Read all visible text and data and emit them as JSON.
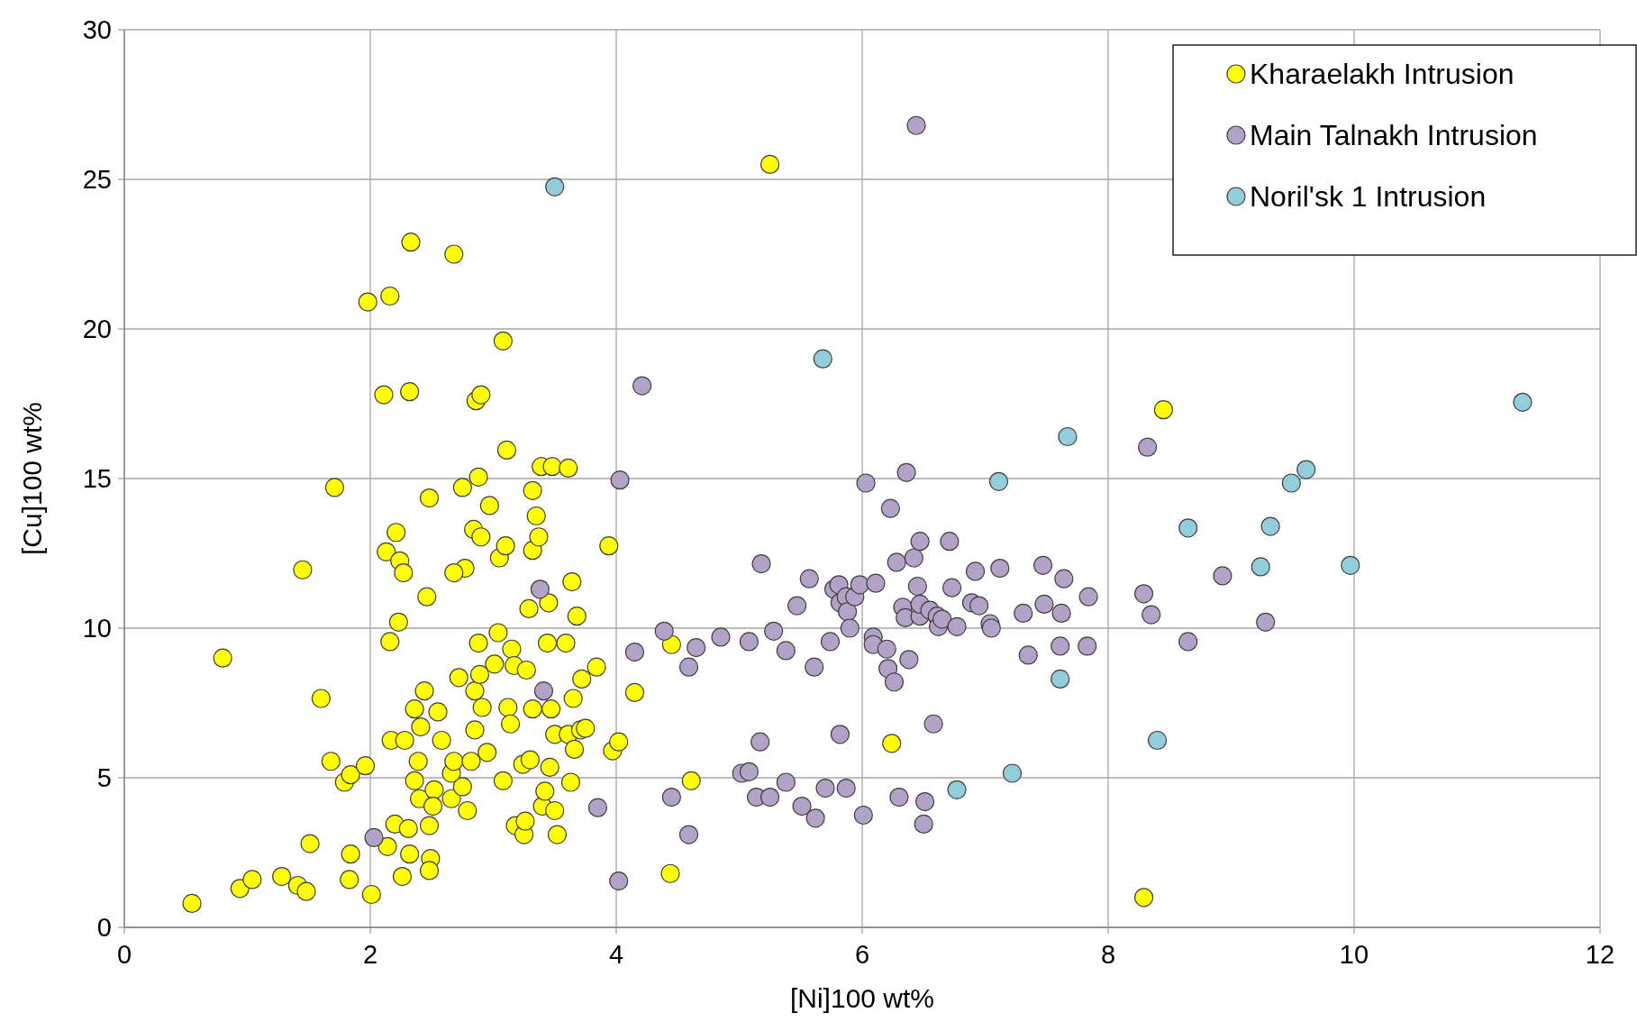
{
  "chart_data": {
    "type": "scatter",
    "xlabel": "[Ni]100 wt%",
    "ylabel": "[Cu]100 wt%",
    "xlim": [
      0,
      12
    ],
    "ylim": [
      0,
      30
    ],
    "xticks": [
      0,
      2,
      4,
      6,
      8,
      10,
      12
    ],
    "yticks": [
      0,
      5,
      10,
      15,
      20,
      25,
      30
    ],
    "grid": true,
    "legend": "top right",
    "marker": "circle",
    "series": [
      {
        "name": "Kharaelakh Intrusion",
        "color": "#ffff00",
        "x": [
          0.55,
          0.8,
          0.94,
          1.04,
          1.28,
          1.41,
          1.48,
          1.51,
          1.45,
          1.71,
          1.6,
          1.68,
          1.79,
          1.84,
          1.83,
          1.84,
          1.96,
          2.01,
          1.98,
          2.16,
          2.33,
          2.68,
          2.11,
          2.32,
          2.86,
          2.9,
          3.08,
          5.25,
          2.13,
          2.21,
          2.24,
          2.27,
          2.23,
          2.16,
          2.17,
          2.28,
          2.2,
          2.14,
          2.26,
          2.31,
          2.32,
          2.46,
          2.48,
          2.44,
          2.36,
          2.41,
          2.39,
          2.36,
          2.4,
          2.48,
          2.49,
          2.48,
          2.52,
          2.51,
          2.55,
          2.58,
          2.66,
          2.66,
          2.68,
          2.72,
          2.75,
          2.77,
          2.68,
          2.84,
          2.88,
          2.97,
          2.9,
          3.05,
          3.11,
          3.1,
          2.75,
          2.79,
          2.82,
          2.85,
          2.85,
          2.88,
          2.89,
          2.91,
          2.95,
          3.01,
          3.04,
          3.08,
          3.12,
          3.14,
          3.15,
          3.17,
          3.18,
          3.24,
          3.25,
          3.26,
          3.27,
          3.29,
          3.32,
          3.32,
          3.35,
          3.32,
          3.37,
          3.39,
          3.48,
          3.61,
          3.45,
          3.3,
          3.4,
          3.42,
          3.46,
          3.44,
          3.47,
          3.5,
          3.5,
          3.52,
          3.59,
          3.61,
          3.63,
          3.64,
          3.65,
          3.66,
          3.68,
          3.71,
          3.72,
          3.75,
          3.84,
          3.94,
          3.97,
          4.02,
          4.15,
          4.45,
          4.44,
          4.61,
          6.24,
          8.45,
          8.29
        ],
        "values": [
          0.8,
          9.0,
          1.3,
          1.6,
          1.7,
          1.4,
          1.2,
          2.8,
          11.95,
          14.7,
          7.65,
          5.55,
          4.85,
          5.1,
          1.6,
          2.45,
          5.4,
          1.1,
          20.9,
          21.1,
          22.9,
          22.5,
          17.8,
          17.9,
          17.6,
          17.8,
          19.6,
          25.5,
          12.55,
          13.2,
          12.25,
          11.85,
          10.2,
          9.55,
          6.25,
          6.25,
          3.45,
          2.7,
          1.7,
          3.3,
          2.45,
          11.05,
          14.35,
          7.9,
          7.3,
          6.7,
          5.55,
          4.9,
          4.3,
          3.4,
          2.3,
          1.9,
          4.6,
          4.05,
          7.2,
          6.25,
          4.3,
          5.15,
          5.55,
          8.35,
          14.7,
          12.0,
          11.85,
          13.3,
          15.05,
          14.1,
          13.05,
          12.35,
          15.95,
          12.75,
          4.7,
          3.9,
          5.55,
          6.6,
          7.9,
          9.5,
          8.45,
          7.35,
          5.85,
          8.8,
          9.85,
          4.9,
          7.35,
          6.8,
          9.3,
          8.75,
          3.4,
          5.45,
          3.1,
          3.55,
          8.6,
          10.65,
          7.3,
          14.6,
          13.75,
          12.6,
          13.05,
          15.4,
          15.4,
          15.35,
          10.85,
          5.6,
          4.05,
          4.55,
          5.35,
          9.5,
          7.3,
          6.45,
          3.9,
          3.1,
          9.5,
          6.45,
          4.85,
          11.55,
          7.65,
          5.95,
          10.4,
          6.6,
          8.3,
          6.65,
          8.7,
          12.75,
          5.9,
          6.2,
          7.85,
          9.45,
          1.8,
          4.9,
          6.15,
          17.3,
          1.0
        ]
      },
      {
        "name": "Main Talnakh Intrusion",
        "color": "#b3a2c7",
        "x": [
          6.44,
          4.21,
          4.03,
          3.38,
          3.41,
          2.03,
          3.85,
          4.02,
          4.15,
          4.39,
          4.45,
          4.59,
          4.65,
          4.59,
          4.85,
          5.02,
          5.08,
          5.08,
          5.14,
          5.17,
          5.18,
          5.25,
          5.28,
          5.38,
          5.38,
          5.47,
          5.51,
          5.57,
          5.62,
          5.61,
          5.7,
          5.74,
          5.77,
          5.81,
          5.82,
          5.82,
          5.87,
          5.87,
          5.88,
          5.9,
          5.94,
          5.98,
          6.01,
          6.03,
          6.09,
          6.11,
          6.09,
          6.2,
          6.21,
          6.23,
          6.26,
          6.28,
          6.3,
          6.33,
          6.35,
          6.36,
          6.38,
          6.42,
          6.45,
          6.47,
          6.47,
          6.47,
          6.5,
          6.51,
          6.55,
          6.58,
          6.61,
          6.62,
          6.65,
          6.71,
          6.73,
          6.77,
          6.89,
          6.92,
          6.95,
          7.04,
          7.05,
          7.12,
          7.31,
          7.35,
          7.47,
          7.48,
          7.61,
          7.62,
          7.64,
          7.83,
          7.84,
          8.32,
          8.29,
          8.35,
          8.65,
          8.93,
          9.28
        ],
        "values": [
          26.8,
          18.1,
          14.95,
          11.3,
          7.9,
          3.0,
          4.0,
          1.55,
          9.2,
          9.9,
          4.35,
          8.7,
          9.35,
          3.1,
          9.7,
          5.15,
          5.2,
          9.55,
          4.35,
          6.2,
          12.15,
          4.35,
          9.9,
          4.85,
          9.25,
          10.75,
          4.05,
          11.65,
          3.65,
          8.7,
          4.65,
          9.55,
          11.3,
          11.45,
          6.45,
          10.85,
          4.65,
          11.05,
          10.55,
          10.0,
          11.05,
          11.45,
          3.75,
          14.85,
          9.7,
          11.5,
          9.45,
          9.3,
          8.65,
          14.0,
          8.2,
          12.2,
          4.35,
          10.7,
          10.35,
          15.2,
          8.95,
          12.35,
          11.4,
          12.9,
          10.4,
          10.8,
          3.45,
          4.2,
          10.6,
          6.8,
          10.4,
          10.05,
          10.3,
          12.9,
          11.35,
          10.05,
          10.85,
          11.9,
          10.75,
          10.15,
          10.0,
          12.0,
          10.5,
          9.1,
          12.1,
          10.8,
          9.4,
          10.5,
          11.65,
          9.4,
          11.05,
          16.05,
          11.15,
          10.45,
          9.55,
          11.75,
          10.2
        ]
      },
      {
        "name": "Noril'sk 1 Intrusion",
        "color": "#92cddc",
        "x": [
          3.5,
          5.68,
          7.67,
          7.11,
          8.65,
          11.37,
          9.61,
          9.49,
          9.32,
          9.24,
          9.97,
          7.61,
          8.4,
          6.77,
          7.22
        ],
        "values": [
          24.75,
          19.0,
          16.4,
          14.9,
          13.35,
          17.55,
          15.3,
          14.85,
          13.4,
          12.05,
          12.1,
          8.3,
          6.25,
          4.6,
          5.15
        ]
      }
    ]
  }
}
